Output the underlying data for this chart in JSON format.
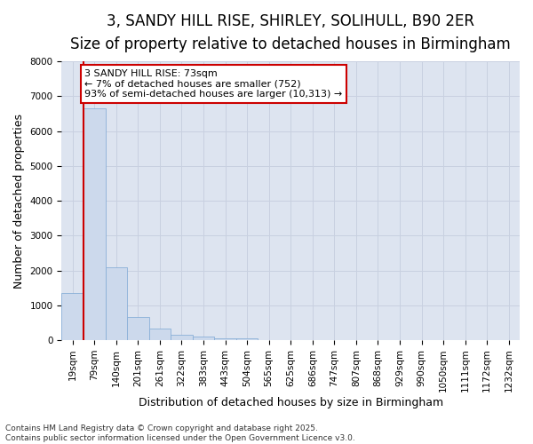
{
  "title_line1": "3, SANDY HILL RISE, SHIRLEY, SOLIHULL, B90 2ER",
  "title_line2": "Size of property relative to detached houses in Birmingham",
  "xlabel": "Distribution of detached houses by size in Birmingham",
  "ylabel": "Number of detached properties",
  "categories": [
    "19sqm",
    "79sqm",
    "140sqm",
    "201sqm",
    "261sqm",
    "322sqm",
    "383sqm",
    "443sqm",
    "504sqm",
    "565sqm",
    "625sqm",
    "686sqm",
    "747sqm",
    "807sqm",
    "868sqm",
    "929sqm",
    "990sqm",
    "1050sqm",
    "1111sqm",
    "1172sqm",
    "1232sqm"
  ],
  "values": [
    1350,
    6650,
    2100,
    650,
    320,
    160,
    90,
    60,
    60,
    0,
    0,
    0,
    0,
    0,
    0,
    0,
    0,
    0,
    0,
    0,
    0
  ],
  "bar_color": "#ccd9ec",
  "bar_edge_color": "#8ab0d8",
  "vline_color": "#cc0000",
  "annotation_text": "3 SANDY HILL RISE: 73sqm\n← 7% of detached houses are smaller (752)\n93% of semi-detached houses are larger (10,313) →",
  "annotation_box_color": "#cc0000",
  "ylim": [
    0,
    8000
  ],
  "yticks": [
    0,
    1000,
    2000,
    3000,
    4000,
    5000,
    6000,
    7000,
    8000
  ],
  "grid_color": "#c8d0e0",
  "plot_bg_color": "#dde4f0",
  "fig_bg_color": "#ffffff",
  "footnote": "Contains HM Land Registry data © Crown copyright and database right 2025.\nContains public sector information licensed under the Open Government Licence v3.0.",
  "title_fontsize": 12,
  "subtitle_fontsize": 10,
  "annotation_fontsize": 8,
  "footnote_fontsize": 6.5,
  "axis_label_fontsize": 9,
  "tick_fontsize": 7.5
}
